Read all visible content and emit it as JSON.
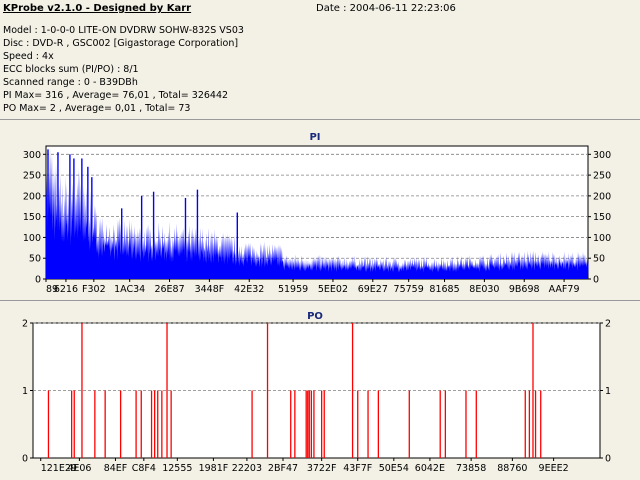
{
  "header": {
    "title": "KProbe v2.1.0 - Designed by Karr",
    "date": "Date : 2004-06-11 22:23:06",
    "lines": [
      "Model : 1-0-0-0 LITE-ON DVDRW SOHW-832S  VS03",
      "Disc : DVD-R , GSC002 [Gigastorage Corporation]",
      "Speed : 4x",
      "ECC blocks sum (PI/PO) : 8/1",
      "Scanned range : 0 - B39DBh",
      "PI Max= 316 , Average= 76,01 , Total= 326442",
      "PO Max= 2 , Average= 0,01 , Total= 73"
    ]
  },
  "chart_data": [
    {
      "type": "bar",
      "title": "PI",
      "color": "#0000ff",
      "grid": true,
      "ylim": [
        0,
        320
      ],
      "y_ticks": [
        0,
        50,
        100,
        150,
        200,
        250,
        300
      ],
      "x_tick_labels": [
        "89",
        "6216",
        "F302",
        "1AC34",
        "26E87",
        "3448F",
        "42E32",
        "51959",
        "5EE02",
        "69E27",
        "75759",
        "81685",
        "8E030",
        "9B698",
        "AAF79"
      ],
      "x_tick_positions": [
        0,
        5,
        12,
        21,
        31,
        41,
        51,
        62,
        72,
        82,
        91,
        100,
        110,
        120,
        130
      ],
      "x_range": [
        0,
        136
      ],
      "profile": [
        [
          0,
          300
        ],
        [
          1,
          290
        ],
        [
          2,
          250
        ],
        [
          4,
          200
        ],
        [
          5,
          210
        ],
        [
          8,
          230
        ],
        [
          10,
          200
        ],
        [
          12,
          155
        ],
        [
          14,
          130
        ],
        [
          16,
          125
        ],
        [
          20,
          120
        ],
        [
          25,
          110
        ],
        [
          30,
          115
        ],
        [
          35,
          108
        ],
        [
          40,
          105
        ],
        [
          45,
          95
        ],
        [
          50,
          80
        ],
        [
          55,
          75
        ],
        [
          59,
          72
        ],
        [
          60,
          50
        ],
        [
          70,
          48
        ],
        [
          80,
          46
        ],
        [
          90,
          44
        ],
        [
          100,
          45
        ],
        [
          110,
          50
        ],
        [
          120,
          58
        ],
        [
          130,
          56
        ],
        [
          136,
          55
        ]
      ],
      "peaks": [
        [
          0.5,
          312
        ],
        [
          3,
          305
        ],
        [
          6,
          300
        ],
        [
          7,
          290
        ],
        [
          9,
          290
        ],
        [
          10.5,
          270
        ],
        [
          11.5,
          245
        ],
        [
          19,
          170
        ],
        [
          24,
          200
        ],
        [
          27,
          210
        ],
        [
          35,
          195
        ],
        [
          38,
          215
        ],
        [
          48,
          160
        ]
      ]
    },
    {
      "type": "bar",
      "title": "PO",
      "color": "#ff0000",
      "grid": true,
      "ylim": [
        0,
        2
      ],
      "y_ticks": [
        0,
        1,
        2
      ],
      "x_tick_labels": [
        "121E29",
        "4E06",
        "84EF",
        "C8F4",
        "12555",
        "1981F",
        "22203",
        "2BF47",
        "3722F",
        "43F7F",
        "50E54",
        "6042E",
        "73858",
        "88760",
        "9EEE2"
      ],
      "x_tick_positions": [
        1.5,
        9,
        16,
        21.5,
        28,
        35,
        41.5,
        48.5,
        56,
        63,
        70,
        77,
        85,
        93,
        101
      ],
      "x_range": [
        0,
        110
      ],
      "events": [
        [
          3,
          1
        ],
        [
          7.5,
          1
        ],
        [
          8,
          1
        ],
        [
          9.5,
          2
        ],
        [
          12,
          1
        ],
        [
          14,
          1
        ],
        [
          17,
          1
        ],
        [
          20,
          1
        ],
        [
          21,
          1
        ],
        [
          23,
          1
        ],
        [
          23.6,
          1
        ],
        [
          24.2,
          1
        ],
        [
          25,
          1
        ],
        [
          26,
          2
        ],
        [
          26.8,
          1
        ],
        [
          42.5,
          1
        ],
        [
          45.5,
          2
        ],
        [
          50,
          1
        ],
        [
          50.8,
          1
        ],
        [
          53,
          1
        ],
        [
          53.3,
          1
        ],
        [
          53.6,
          1
        ],
        [
          54,
          1
        ],
        [
          54.5,
          1
        ],
        [
          56,
          1
        ],
        [
          56.5,
          1
        ],
        [
          62,
          2
        ],
        [
          63,
          1
        ],
        [
          65,
          1
        ],
        [
          67,
          1
        ],
        [
          73,
          1
        ],
        [
          79,
          1
        ],
        [
          80,
          1
        ],
        [
          84,
          1
        ],
        [
          86,
          1
        ],
        [
          95.5,
          1
        ],
        [
          96.3,
          1
        ],
        [
          97,
          2
        ],
        [
          97.5,
          1
        ],
        [
          98.5,
          1
        ]
      ]
    }
  ]
}
